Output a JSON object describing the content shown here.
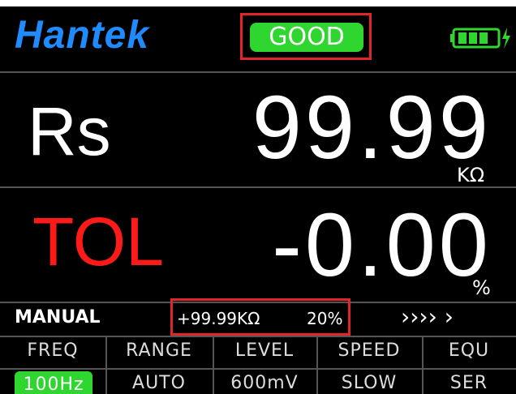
{
  "header": {
    "logo": "Hantek",
    "status": "GOOD"
  },
  "readings": [
    {
      "label": "Rs",
      "value": "99.99",
      "unit": "KΩ"
    },
    {
      "label": "TOL",
      "value": "-0.00",
      "unit": "%"
    }
  ],
  "status_bar": {
    "mode": "MANUAL",
    "reference": "+99.99KΩ",
    "tolerance": "20%",
    "arrows": "›››› ›"
  },
  "settings": {
    "headers": [
      "FREQ",
      "RANGE",
      "LEVEL",
      "SPEED",
      "EQU"
    ],
    "values": [
      "100Hz",
      "AUTO",
      "600mV",
      "SLOW",
      "SER"
    ]
  }
}
